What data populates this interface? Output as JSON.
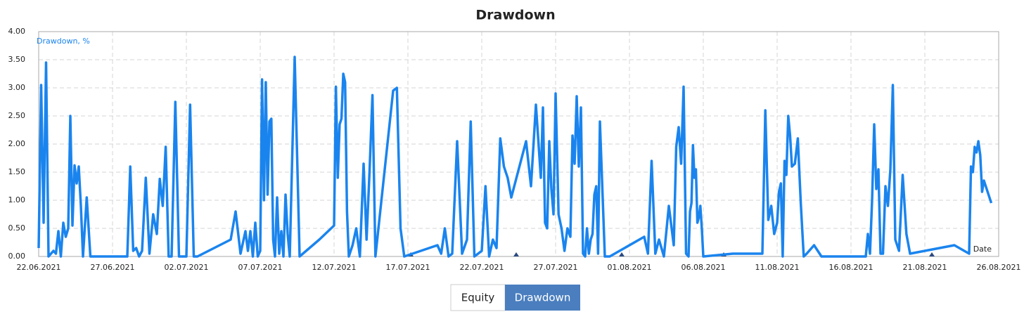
{
  "chart_data": {
    "type": "line",
    "title": "Drawdown",
    "x_label": "Date",
    "series": [
      {
        "name": "Drawdown, %",
        "color": "#1a84ee",
        "values": [
          0.15,
          3.05,
          0.6,
          3.45,
          0,
          0.05,
          0.1,
          0.05,
          0.45,
          0,
          0.6,
          0.35,
          0.5,
          2.5,
          0.55,
          1.62,
          1.3,
          1.6,
          0.9,
          0,
          1.05,
          0,
          0,
          0,
          1.6,
          0.1,
          0.15,
          0,
          0.1,
          1.4,
          0.05,
          0.75,
          0.4,
          1.38,
          0.9,
          1.95,
          0,
          0,
          2.75,
          0,
          0,
          0,
          2.7,
          0,
          0,
          0.3,
          0.8,
          0.05,
          0.45,
          0.1,
          0.45,
          0,
          0.6,
          0,
          0.1,
          3.15,
          1.0,
          3.1,
          1.1,
          2.4,
          2.45,
          0.3,
          0,
          1.05,
          0.05,
          0.45,
          0,
          1.1,
          0.4,
          0,
          3.55,
          0,
          0.3,
          0.55,
          3.02,
          1.4,
          2.35,
          2.45,
          3.25,
          3.1,
          0.8,
          0,
          0.2,
          0.5,
          0,
          1.65,
          0.3,
          1.5,
          2.87,
          0,
          2.95,
          3.0,
          0.5,
          0,
          0.2,
          0.05,
          0.5,
          0,
          0.05,
          2.05,
          0.05,
          0.3,
          2.4,
          0,
          0.05,
          0.1,
          1.25,
          0,
          0.3,
          0.15,
          2.1,
          1.6,
          1.4,
          1.05,
          2.05,
          1.25,
          2.7,
          1.4,
          2.65,
          0.6,
          0.5,
          2.05,
          1.2,
          0.75,
          2.9,
          0.75,
          0.5,
          0.1,
          0.5,
          0.35,
          2.15,
          1.65,
          2.85,
          1.6,
          2.65,
          0.05,
          0,
          0.5,
          0.05,
          0.3,
          0.4,
          1.1,
          1.25,
          0.05,
          2.4,
          0,
          0,
          0.35,
          0.05,
          1.7,
          0.05,
          0.3,
          0,
          0.9,
          0.2,
          1.95,
          2.3,
          1.65,
          3.02,
          0.05,
          0,
          0.8,
          0.95,
          1.98,
          1.4,
          1.55,
          0.6,
          0.7,
          0.9,
          0.5,
          0,
          0.05,
          0.05,
          2.6,
          0.65,
          0.9,
          0.4,
          0.6,
          1.15,
          1.3,
          0,
          1.7,
          1.45,
          2.5,
          2.15,
          1.6,
          1.65,
          2.1,
          0.95,
          0,
          0.05,
          0.2,
          0,
          0,
          0.4,
          0.05,
          1.0,
          2.35,
          1.2,
          1.55,
          0.05,
          0.05,
          1.25,
          0.9,
          1.55,
          3.05,
          0.3,
          0.1,
          1.45,
          0.4,
          0.05,
          0.2,
          0.05,
          1.6,
          1.5,
          1.95,
          1.85,
          2.05,
          1.8,
          1.15,
          1.35,
          0.95
        ]
      }
    ],
    "x": [
      "22.06.2021",
      "22.06.2021",
      "22.06.2021",
      "22.06.2021",
      "22.06.2021",
      "22.06.2021",
      "23.06.2021",
      "23.06.2021",
      "23.06.2021",
      "23.06.2021",
      "23.06.2021",
      "23.06.2021",
      "24.06.2021",
      "24.06.2021",
      "24.06.2021",
      "24.06.2021",
      "24.06.2021",
      "24.06.2021",
      "24.06.2021",
      "25.06.2021",
      "25.06.2021",
      "25.06.2021",
      "25.06.2021",
      "28.06.2021",
      "28.06.2021",
      "28.06.2021",
      "28.06.2021",
      "28.06.2021",
      "29.06.2021",
      "29.06.2021",
      "29.06.2021",
      "29.06.2021",
      "30.06.2021",
      "30.06.2021",
      "30.06.2021",
      "30.06.2021",
      "30.06.2021",
      "01.07.2021",
      "01.07.2021",
      "01.07.2021",
      "01.07.2021",
      "02.07.2021",
      "02.07.2021",
      "02.07.2021",
      "02.07.2021",
      "05.07.2021",
      "05.07.2021",
      "05.07.2021",
      "06.07.2021",
      "06.07.2021",
      "06.07.2021",
      "06.07.2021",
      "06.07.2021",
      "06.07.2021",
      "07.07.2021",
      "07.07.2021",
      "07.07.2021",
      "07.07.2021",
      "07.07.2021",
      "07.07.2021",
      "07.07.2021",
      "07.07.2021",
      "08.07.2021",
      "08.07.2021",
      "08.07.2021",
      "08.07.2021",
      "08.07.2021",
      "08.07.2021",
      "08.07.2021",
      "09.07.2021",
      "09.07.2021",
      "09.07.2021",
      "11.07.2021",
      "12.07.2021",
      "12.07.2021",
      "12.07.2021",
      "12.07.2021",
      "12.07.2021",
      "12.07.2021",
      "12.07.2021",
      "12.07.2021",
      "13.07.2021",
      "13.07.2021",
      "13.07.2021",
      "13.07.2021",
      "14.07.2021",
      "14.07.2021",
      "14.07.2021",
      "14.07.2021",
      "14.07.2021",
      "16.07.2021",
      "16.07.2021",
      "16.07.2021",
      "16.07.2021",
      "19.07.2021",
      "19.07.2021",
      "19.07.2021",
      "19.07.2021",
      "20.07.2021",
      "20.07.2021",
      "20.07.2021",
      "21.07.2021",
      "21.07.2021",
      "21.07.2021",
      "21.07.2021",
      "22.07.2021",
      "22.07.2021",
      "22.07.2021",
      "22.07.2021",
      "23.07.2021",
      "23.07.2021",
      "23.07.2021",
      "23.07.2021",
      "24.07.2021",
      "25.07.2021",
      "25.07.2021",
      "25.07.2021",
      "26.07.2021",
      "26.07.2021",
      "26.07.2021",
      "26.07.2021",
      "26.07.2021",
      "26.07.2021",
      "26.07.2021",
      "27.07.2021",
      "27.07.2021",
      "27.07.2021",
      "27.07.2021",
      "27.07.2021",
      "28.07.2021",
      "28.07.2021",
      "28.07.2021",
      "28.07.2021",
      "28.07.2021",
      "28.07.2021",
      "28.07.2021",
      "29.07.2021",
      "29.07.2021",
      "29.07.2021",
      "29.07.2021",
      "29.07.2021",
      "29.07.2021",
      "29.07.2021",
      "29.07.2021",
      "30.07.2021",
      "30.07.2021",
      "30.07.2021",
      "02.08.2021",
      "02.08.2021",
      "02.08.2021",
      "02.08.2021",
      "03.08.2021",
      "03.08.2021",
      "03.08.2021",
      "04.08.2021",
      "04.08.2021",
      "04.08.2021",
      "04.08.2021",
      "04.08.2021",
      "04.08.2021",
      "05.08.2021",
      "05.08.2021",
      "05.08.2021",
      "05.08.2021",
      "05.08.2021",
      "05.08.2021",
      "05.08.2021",
      "05.08.2021",
      "05.08.2021",
      "05.08.2021",
      "06.08.2021",
      "08.08.2021",
      "10.08.2021",
      "10.08.2021",
      "10.08.2021",
      "10.08.2021",
      "10.08.2021",
      "11.08.2021",
      "11.08.2021",
      "11.08.2021",
      "11.08.2021",
      "11.08.2021",
      "11.08.2021",
      "11.08.2021",
      "11.08.2021",
      "12.08.2021",
      "12.08.2021",
      "12.08.2021",
      "12.08.2021",
      "12.08.2021",
      "13.08.2021",
      "13.08.2021",
      "14.08.2021",
      "17.08.2021",
      "17.08.2021",
      "17.08.2021",
      "17.08.2021",
      "17.08.2021",
      "17.08.2021",
      "17.08.2021",
      "18.08.2021",
      "18.08.2021",
      "18.08.2021",
      "18.08.2021",
      "18.08.2021",
      "18.08.2021",
      "19.08.2021",
      "19.08.2021",
      "19.08.2021",
      "19.08.2021",
      "20.08.2021",
      "23.08.2021",
      "24.08.2021",
      "24.08.2021",
      "24.08.2021",
      "24.08.2021",
      "24.08.2021",
      "24.08.2021",
      "24.08.2021",
      "24.08.2021",
      "25.08.2021",
      "25.08.2021"
    ],
    "xlim": [
      "22.06.2021",
      "26.08.2021"
    ],
    "xticks": [
      "22.06.2021",
      "27.06.2021",
      "02.07.2021",
      "07.07.2021",
      "12.07.2021",
      "17.07.2021",
      "22.07.2021",
      "27.07.2021",
      "01.08.2021",
      "06.08.2021",
      "11.08.2021",
      "16.08.2021",
      "21.08.2021",
      "26.08.2021"
    ],
    "ylim": [
      0,
      4
    ],
    "yticks": [
      {
        "value": 0,
        "label": "0.00"
      },
      {
        "value": 0.5,
        "label": "0.50"
      },
      {
        "value": 1,
        "label": "1.00"
      },
      {
        "value": 1.5,
        "label": "1.50"
      },
      {
        "value": 2,
        "label": "2.00"
      },
      {
        "value": 2.5,
        "label": "2.50"
      },
      {
        "value": 3,
        "label": "3.00"
      },
      {
        "value": 3.5,
        "label": "3.50"
      },
      {
        "value": 4,
        "label": "4.00"
      }
    ],
    "grid": true
  },
  "buttons": [
    "Equity",
    "Drawdown"
  ]
}
